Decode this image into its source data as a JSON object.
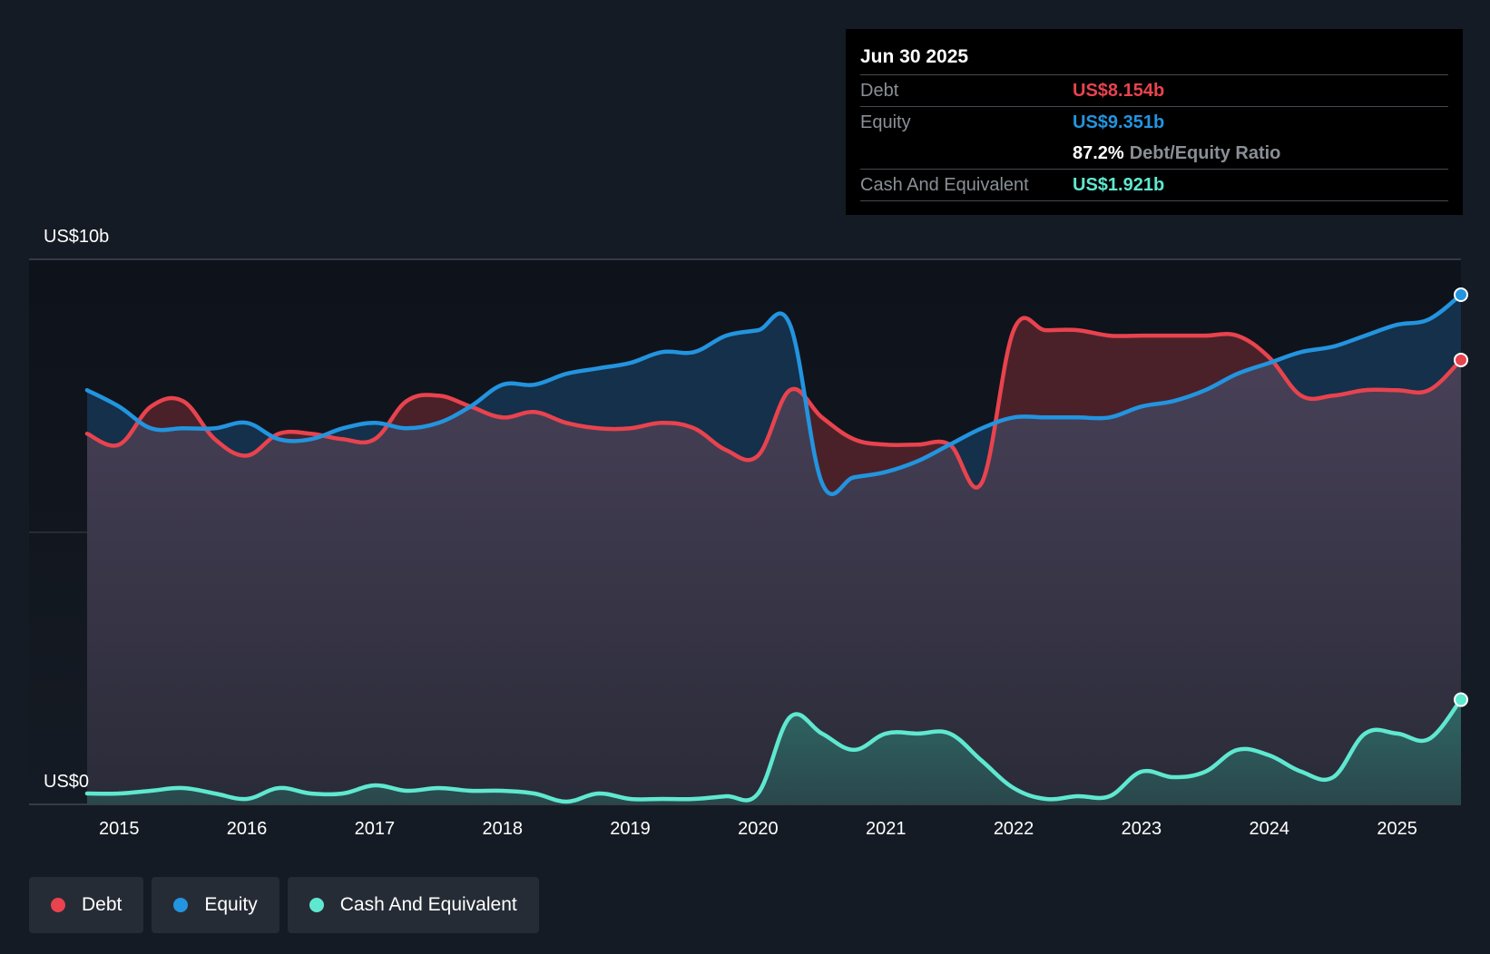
{
  "tooltip": {
    "date": "Jun 30 2025",
    "debt_label": "Debt",
    "debt_value": "US$8.154b",
    "equity_label": "Equity",
    "equity_value": "US$9.351b",
    "ratio_value": "87.2%",
    "ratio_label": "Debt/Equity Ratio",
    "cash_label": "Cash And Equivalent",
    "cash_value": "US$1.921b"
  },
  "legend": [
    {
      "label": "Debt",
      "color": "#e8434e"
    },
    {
      "label": "Equity",
      "color": "#2394df"
    },
    {
      "label": "Cash And Equivalent",
      "color": "#5fe8d0"
    }
  ],
  "colors": {
    "debt": "#e8434e",
    "equity": "#2394df",
    "cash": "#5fe8d0",
    "background": "#151b24"
  },
  "chart_data": {
    "type": "line",
    "title": "",
    "ylabel_top": "US$10b",
    "ylabel_bottom": "US$0",
    "ylim": [
      0,
      10
    ],
    "xlim": [
      2014.75,
      2025.5
    ],
    "x_ticks": [
      "2015",
      "2016",
      "2017",
      "2018",
      "2019",
      "2020",
      "2021",
      "2022",
      "2023",
      "2024",
      "2025"
    ],
    "grid": true,
    "legend_position": "bottom-left",
    "series": [
      {
        "name": "Debt",
        "x": [
          2014.75,
          2015.0,
          2015.25,
          2015.5,
          2015.75,
          2016.0,
          2016.25,
          2016.5,
          2016.75,
          2017.0,
          2017.25,
          2017.5,
          2017.75,
          2018.0,
          2018.25,
          2018.5,
          2018.75,
          2019.0,
          2019.25,
          2019.5,
          2019.75,
          2020.0,
          2020.25,
          2020.5,
          2020.75,
          2021.0,
          2021.25,
          2021.5,
          2021.75,
          2022.0,
          2022.25,
          2022.5,
          2022.75,
          2023.0,
          2023.25,
          2023.5,
          2023.75,
          2024.0,
          2024.25,
          2024.5,
          2024.75,
          2025.0,
          2025.25,
          2025.5
        ],
        "values": [
          6.8,
          6.6,
          7.3,
          7.4,
          6.7,
          6.4,
          6.8,
          6.8,
          6.7,
          6.7,
          7.4,
          7.5,
          7.3,
          7.1,
          7.2,
          7.0,
          6.9,
          6.9,
          7.0,
          6.9,
          6.5,
          6.4,
          7.6,
          7.1,
          6.7,
          6.6,
          6.6,
          6.6,
          5.9,
          8.7,
          8.7,
          8.7,
          8.6,
          8.6,
          8.6,
          8.6,
          8.6,
          8.2,
          7.5,
          7.5,
          7.6,
          7.6,
          7.6,
          8.154
        ]
      },
      {
        "name": "Equity",
        "x": [
          2014.75,
          2015.0,
          2015.25,
          2015.5,
          2015.75,
          2016.0,
          2016.25,
          2016.5,
          2016.75,
          2017.0,
          2017.25,
          2017.5,
          2017.75,
          2018.0,
          2018.25,
          2018.5,
          2018.75,
          2019.0,
          2019.25,
          2019.5,
          2019.75,
          2020.0,
          2020.25,
          2020.5,
          2020.75,
          2021.0,
          2021.25,
          2021.5,
          2021.75,
          2022.0,
          2022.25,
          2022.5,
          2022.75,
          2023.0,
          2023.25,
          2023.5,
          2023.75,
          2024.0,
          2024.25,
          2024.5,
          2024.75,
          2025.0,
          2025.25,
          2025.5
        ],
        "values": [
          7.6,
          7.3,
          6.9,
          6.9,
          6.9,
          7.0,
          6.7,
          6.7,
          6.9,
          7.0,
          6.9,
          7.0,
          7.3,
          7.7,
          7.7,
          7.9,
          8.0,
          8.1,
          8.3,
          8.3,
          8.6,
          8.7,
          8.8,
          5.9,
          6.0,
          6.1,
          6.3,
          6.6,
          6.9,
          7.1,
          7.1,
          7.1,
          7.1,
          7.3,
          7.4,
          7.6,
          7.9,
          8.1,
          8.3,
          8.4,
          8.6,
          8.8,
          8.9,
          9.351
        ]
      },
      {
        "name": "Cash And Equivalent",
        "x": [
          2014.75,
          2015.0,
          2015.25,
          2015.5,
          2015.75,
          2016.0,
          2016.25,
          2016.5,
          2016.75,
          2017.0,
          2017.25,
          2017.5,
          2017.75,
          2018.0,
          2018.25,
          2018.5,
          2018.75,
          2019.0,
          2019.25,
          2019.5,
          2019.75,
          2020.0,
          2020.25,
          2020.5,
          2020.75,
          2021.0,
          2021.25,
          2021.5,
          2021.75,
          2022.0,
          2022.25,
          2022.5,
          2022.75,
          2023.0,
          2023.25,
          2023.5,
          2023.75,
          2024.0,
          2024.25,
          2024.5,
          2024.75,
          2025.0,
          2025.25,
          2025.5
        ],
        "values": [
          0.2,
          0.2,
          0.25,
          0.3,
          0.2,
          0.1,
          0.3,
          0.2,
          0.2,
          0.35,
          0.25,
          0.3,
          0.25,
          0.25,
          0.2,
          0.05,
          0.2,
          0.1,
          0.1,
          0.1,
          0.15,
          0.2,
          1.6,
          1.3,
          1.0,
          1.3,
          1.3,
          1.3,
          0.8,
          0.3,
          0.1,
          0.15,
          0.15,
          0.6,
          0.5,
          0.6,
          1.0,
          0.9,
          0.6,
          0.5,
          1.3,
          1.3,
          1.2,
          1.921
        ]
      }
    ]
  }
}
